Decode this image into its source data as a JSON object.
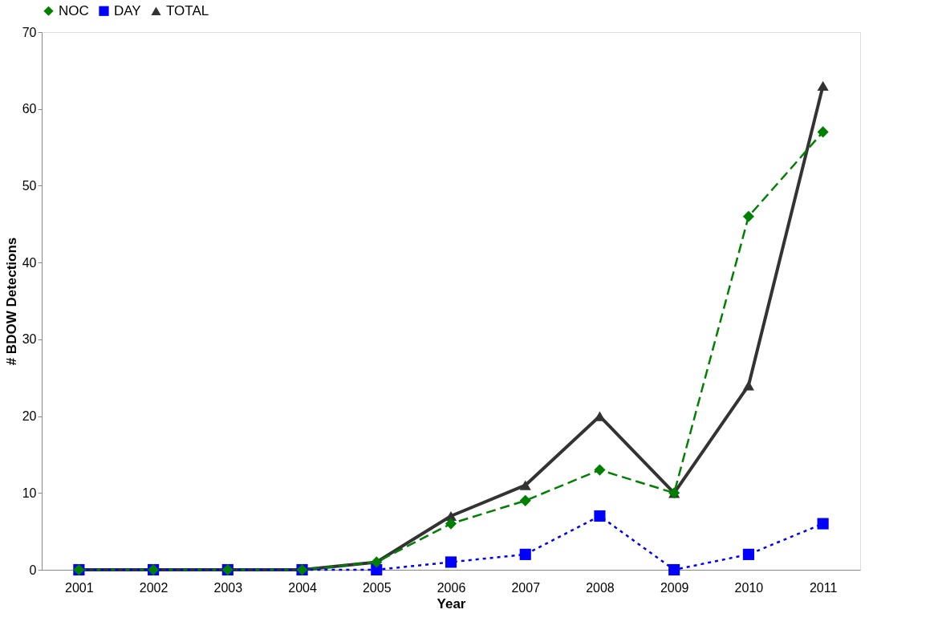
{
  "chart_data": {
    "type": "line",
    "xlabel": "Year",
    "ylabel": "# BDOW Detections",
    "categories": [
      "2001",
      "2002",
      "2003",
      "2004",
      "2005",
      "2006",
      "2007",
      "2008",
      "2009",
      "2010",
      "2011"
    ],
    "series": [
      {
        "name": "NOC",
        "color": "#008000",
        "marker": "diamond",
        "line_style": "dashed",
        "values": [
          0,
          0,
          0,
          0,
          1,
          6,
          9,
          13,
          10,
          46,
          57
        ]
      },
      {
        "name": "DAY",
        "color": "#0000ff",
        "marker": "square",
        "line_style": "dotted",
        "values": [
          0,
          0,
          0,
          0,
          0,
          1,
          2,
          7,
          0,
          2,
          6
        ]
      },
      {
        "name": "TOTAL",
        "color": "#333333",
        "marker": "triangle",
        "line_style": "solid",
        "values": [
          0,
          0,
          0,
          0,
          1,
          7,
          11,
          20,
          10,
          24,
          63
        ]
      }
    ],
    "ylim": [
      0,
      70
    ],
    "yticks": [
      0,
      10,
      20,
      30,
      40,
      50,
      60,
      70
    ],
    "grid": false,
    "legend": "top"
  }
}
